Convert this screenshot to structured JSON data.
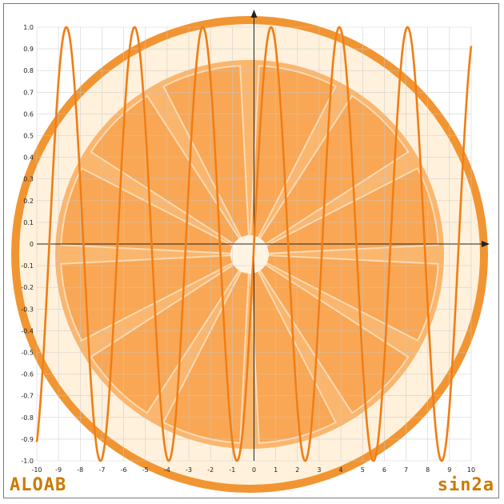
{
  "watermarks": {
    "left": "ALOAB",
    "right": "sin2a"
  },
  "colors": {
    "curve": "#f07d14",
    "curve_alt": "#f5a14a",
    "axis": "#222222",
    "grid": "#c8c8c8",
    "peel": "#f08a1c",
    "pith": "#fff1dc",
    "flesh": "#fbb66e"
  },
  "chart_data": {
    "type": "line",
    "title": "",
    "xlabel": "",
    "ylabel": "",
    "xlim": [
      -10,
      10
    ],
    "ylim": [
      -1,
      1
    ],
    "grid": true,
    "x_ticks": [
      "-10",
      "-9",
      "-8",
      "-7",
      "-6",
      "-5",
      "-4",
      "-3",
      "-2",
      "-1",
      "0",
      "1",
      "2",
      "3",
      "4",
      "5",
      "6",
      "7",
      "8",
      "9",
      "10"
    ],
    "y_ticks": [
      "-1.0",
      "-0.9",
      "-0.8",
      "-0.7",
      "-0.6",
      "-0.5",
      "-0.4",
      "-0.3",
      "-0.2",
      "-0.1",
      "0",
      "0.1",
      "0.2",
      "0.3",
      "0.4",
      "0.5",
      "0.6",
      "0.7",
      "0.8",
      "0.9",
      "1.0"
    ],
    "series": [
      {
        "function": "sin(2x)",
        "x": [
          -10,
          10
        ],
        "color": "#f07d14",
        "highlighted_range": [
          -10,
          10
        ]
      }
    ],
    "background_image": "orange-slice"
  }
}
